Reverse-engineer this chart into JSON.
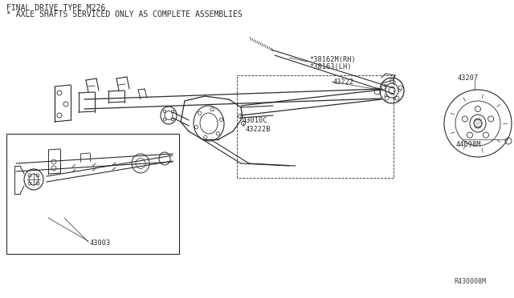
{
  "bg_color": "#ffffff",
  "title_line1": "FINAL DRIVE TYPE M226",
  "title_line2": "* AXLE SHAFTS SERVICED ONLY AS COMPLETE ASSEMBLIES",
  "part_number": "R430008M",
  "labels": {
    "38162M": "*38162M(RH)",
    "38163": "*38163(LH)",
    "43222": "43222",
    "43010C": "43010C",
    "43222B": "43222B",
    "43003": "43003",
    "43207": "43207",
    "44098M": "44098M"
  },
  "lc": "#2a2a2a",
  "title_fs": 7.0,
  "label_fs": 6.2,
  "fig_w": 6.4,
  "fig_h": 3.72,
  "dpi": 100
}
